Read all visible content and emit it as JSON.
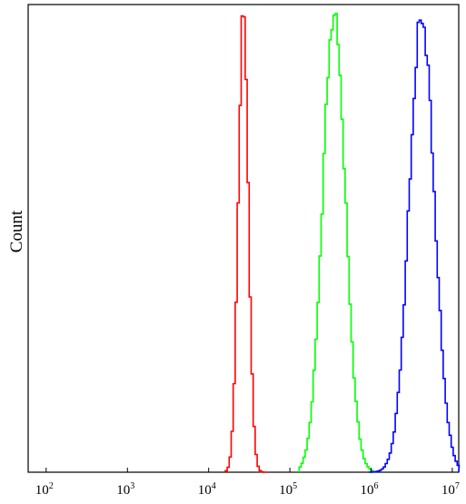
{
  "chart_data": {
    "type": "histogram",
    "title": "",
    "xlabel": "",
    "ylabel": "Count",
    "x_scale": "log",
    "xlim": [
      60,
      12000000
    ],
    "ylim": [
      0,
      1.02
    ],
    "grid": false,
    "legend": "none",
    "x_ticks": [
      {
        "value": 100,
        "base": "10",
        "exp": "2"
      },
      {
        "value": 1000,
        "base": "10",
        "exp": "3"
      },
      {
        "value": 10000,
        "base": "10",
        "exp": "4"
      },
      {
        "value": 100000,
        "base": "10",
        "exp": "5"
      },
      {
        "value": 1000000,
        "base": "10",
        "exp": "6"
      },
      {
        "value": 10000000,
        "base": "10",
        "exp": "7"
      }
    ],
    "series": [
      {
        "color": "#ff0000",
        "peak_x": 26000,
        "peak_y": 1.0,
        "range": [
          16000,
          50000
        ],
        "sigma_log": 0.062
      },
      {
        "color": "#00ff00",
        "peak_x": 340000,
        "peak_y": 1.0,
        "range": [
          130000,
          1000000
        ],
        "sigma_log": 0.14
      },
      {
        "color": "#0000ff",
        "peak_x": 4100000,
        "peak_y": 0.99,
        "range": [
          950000,
          12000000
        ],
        "sigma_log": 0.155
      }
    ]
  }
}
